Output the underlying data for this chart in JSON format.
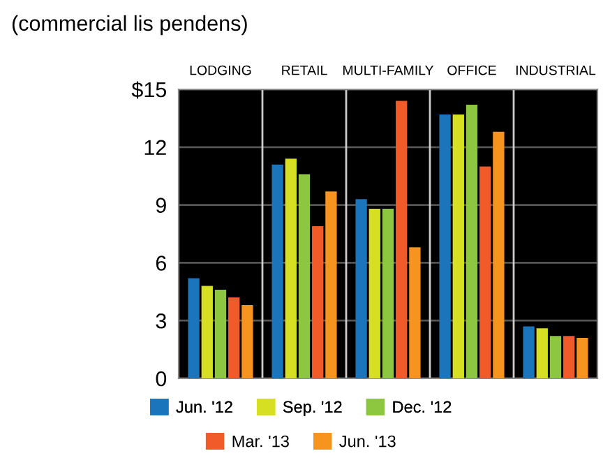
{
  "chart_data": {
    "type": "bar",
    "title": "(commercial lis pendens)",
    "categories": [
      "LODGING",
      "RETAIL",
      "MULTI-FAMILY",
      "OFFICE",
      "INDUSTRIAL"
    ],
    "series": [
      {
        "name": "Jun. '12",
        "color": "#1a75bc",
        "values": [
          5.2,
          11.1,
          9.3,
          13.7,
          2.7
        ]
      },
      {
        "name": "Sep. '12",
        "color": "#d7df23",
        "values": [
          4.8,
          11.4,
          8.8,
          13.7,
          2.6
        ]
      },
      {
        "name": "Dec. '12",
        "color": "#8dc63f",
        "values": [
          4.6,
          10.6,
          8.8,
          14.2,
          2.2
        ]
      },
      {
        "name": "Mar. '13",
        "color": "#f15a29",
        "values": [
          4.2,
          7.9,
          14.4,
          11.0,
          2.2
        ]
      },
      {
        "name": "Jun. '13",
        "color": "#f7941d",
        "values": [
          3.8,
          9.7,
          6.8,
          12.8,
          2.1
        ]
      }
    ],
    "ylim": [
      0,
      15
    ],
    "yticks": [
      0,
      3,
      6,
      9,
      12,
      {
        "value": 15,
        "label": "$15"
      }
    ],
    "grid": true,
    "legend": "bottom"
  }
}
